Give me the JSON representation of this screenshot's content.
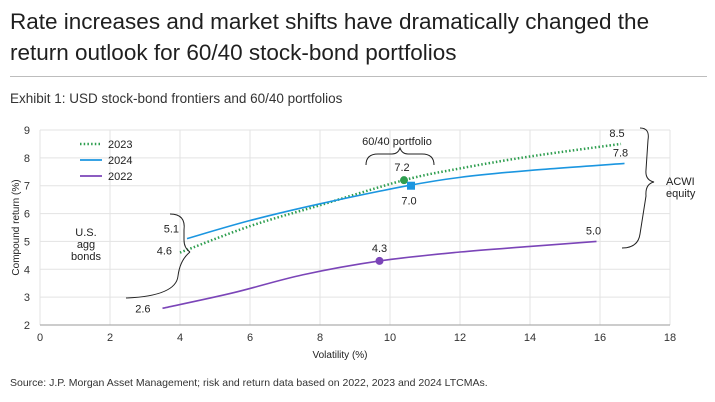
{
  "title": "Rate increases and market shifts have dramatically changed the return outlook for 60/40 stock-bond portfolios",
  "subtitle": "Exhibit 1: USD stock-bond frontiers and 60/40 portfolios",
  "footer": "Source: J.P. Morgan Asset Management; risk and return data based on 2022, 2023 and 2024 LTCMAs.",
  "chart_data": {
    "type": "line",
    "xlabel": "Volatility (%)",
    "ylabel": "Compound return (%)",
    "xlim": [
      0,
      18
    ],
    "ylim": [
      2,
      9
    ],
    "xticks": [
      0,
      2,
      4,
      6,
      8,
      10,
      12,
      14,
      16,
      18
    ],
    "yticks": [
      2,
      3,
      4,
      5,
      6,
      7,
      8,
      9
    ],
    "grid": true,
    "legend_position": "top-left",
    "series": [
      {
        "name": "2023",
        "color": "#2e9e4f",
        "style": "dotted",
        "points": [
          [
            4.0,
            4.6
          ],
          [
            6.0,
            5.55
          ],
          [
            8.0,
            6.3
          ],
          [
            10.4,
            7.2
          ],
          [
            12.0,
            7.62
          ],
          [
            14.0,
            8.05
          ],
          [
            16.6,
            8.5
          ]
        ],
        "marker": {
          "shape": "circle",
          "x": 10.4,
          "y": 7.2,
          "label": "7.2"
        },
        "start_label": "4.6",
        "end_label": "8.5"
      },
      {
        "name": "2024",
        "color": "#1b96e0",
        "style": "solid",
        "points": [
          [
            4.2,
            5.1
          ],
          [
            6.0,
            5.75
          ],
          [
            8.0,
            6.35
          ],
          [
            10.5,
            7.0
          ],
          [
            12.0,
            7.3
          ],
          [
            14.0,
            7.55
          ],
          [
            16.7,
            7.8
          ]
        ],
        "marker": {
          "shape": "square",
          "x": 10.6,
          "y": 7.0,
          "label": "7.0"
        },
        "start_label": "5.1",
        "end_label": "7.8"
      },
      {
        "name": "2022",
        "color": "#7b45b8",
        "style": "solid",
        "points": [
          [
            3.5,
            2.6
          ],
          [
            5.5,
            3.15
          ],
          [
            7.5,
            3.8
          ],
          [
            9.7,
            4.3
          ],
          [
            12.0,
            4.62
          ],
          [
            14.0,
            4.82
          ],
          [
            15.9,
            5.0
          ]
        ],
        "marker": {
          "shape": "circle",
          "x": 9.7,
          "y": 4.3,
          "label": "4.3"
        },
        "start_label": "2.6",
        "end_label": "5.0"
      }
    ],
    "annotations": {
      "bonds": "U.S.\nagg\nbonds",
      "portfolio": "60/40 portfolio",
      "equity": "ACWI\nequity"
    }
  }
}
